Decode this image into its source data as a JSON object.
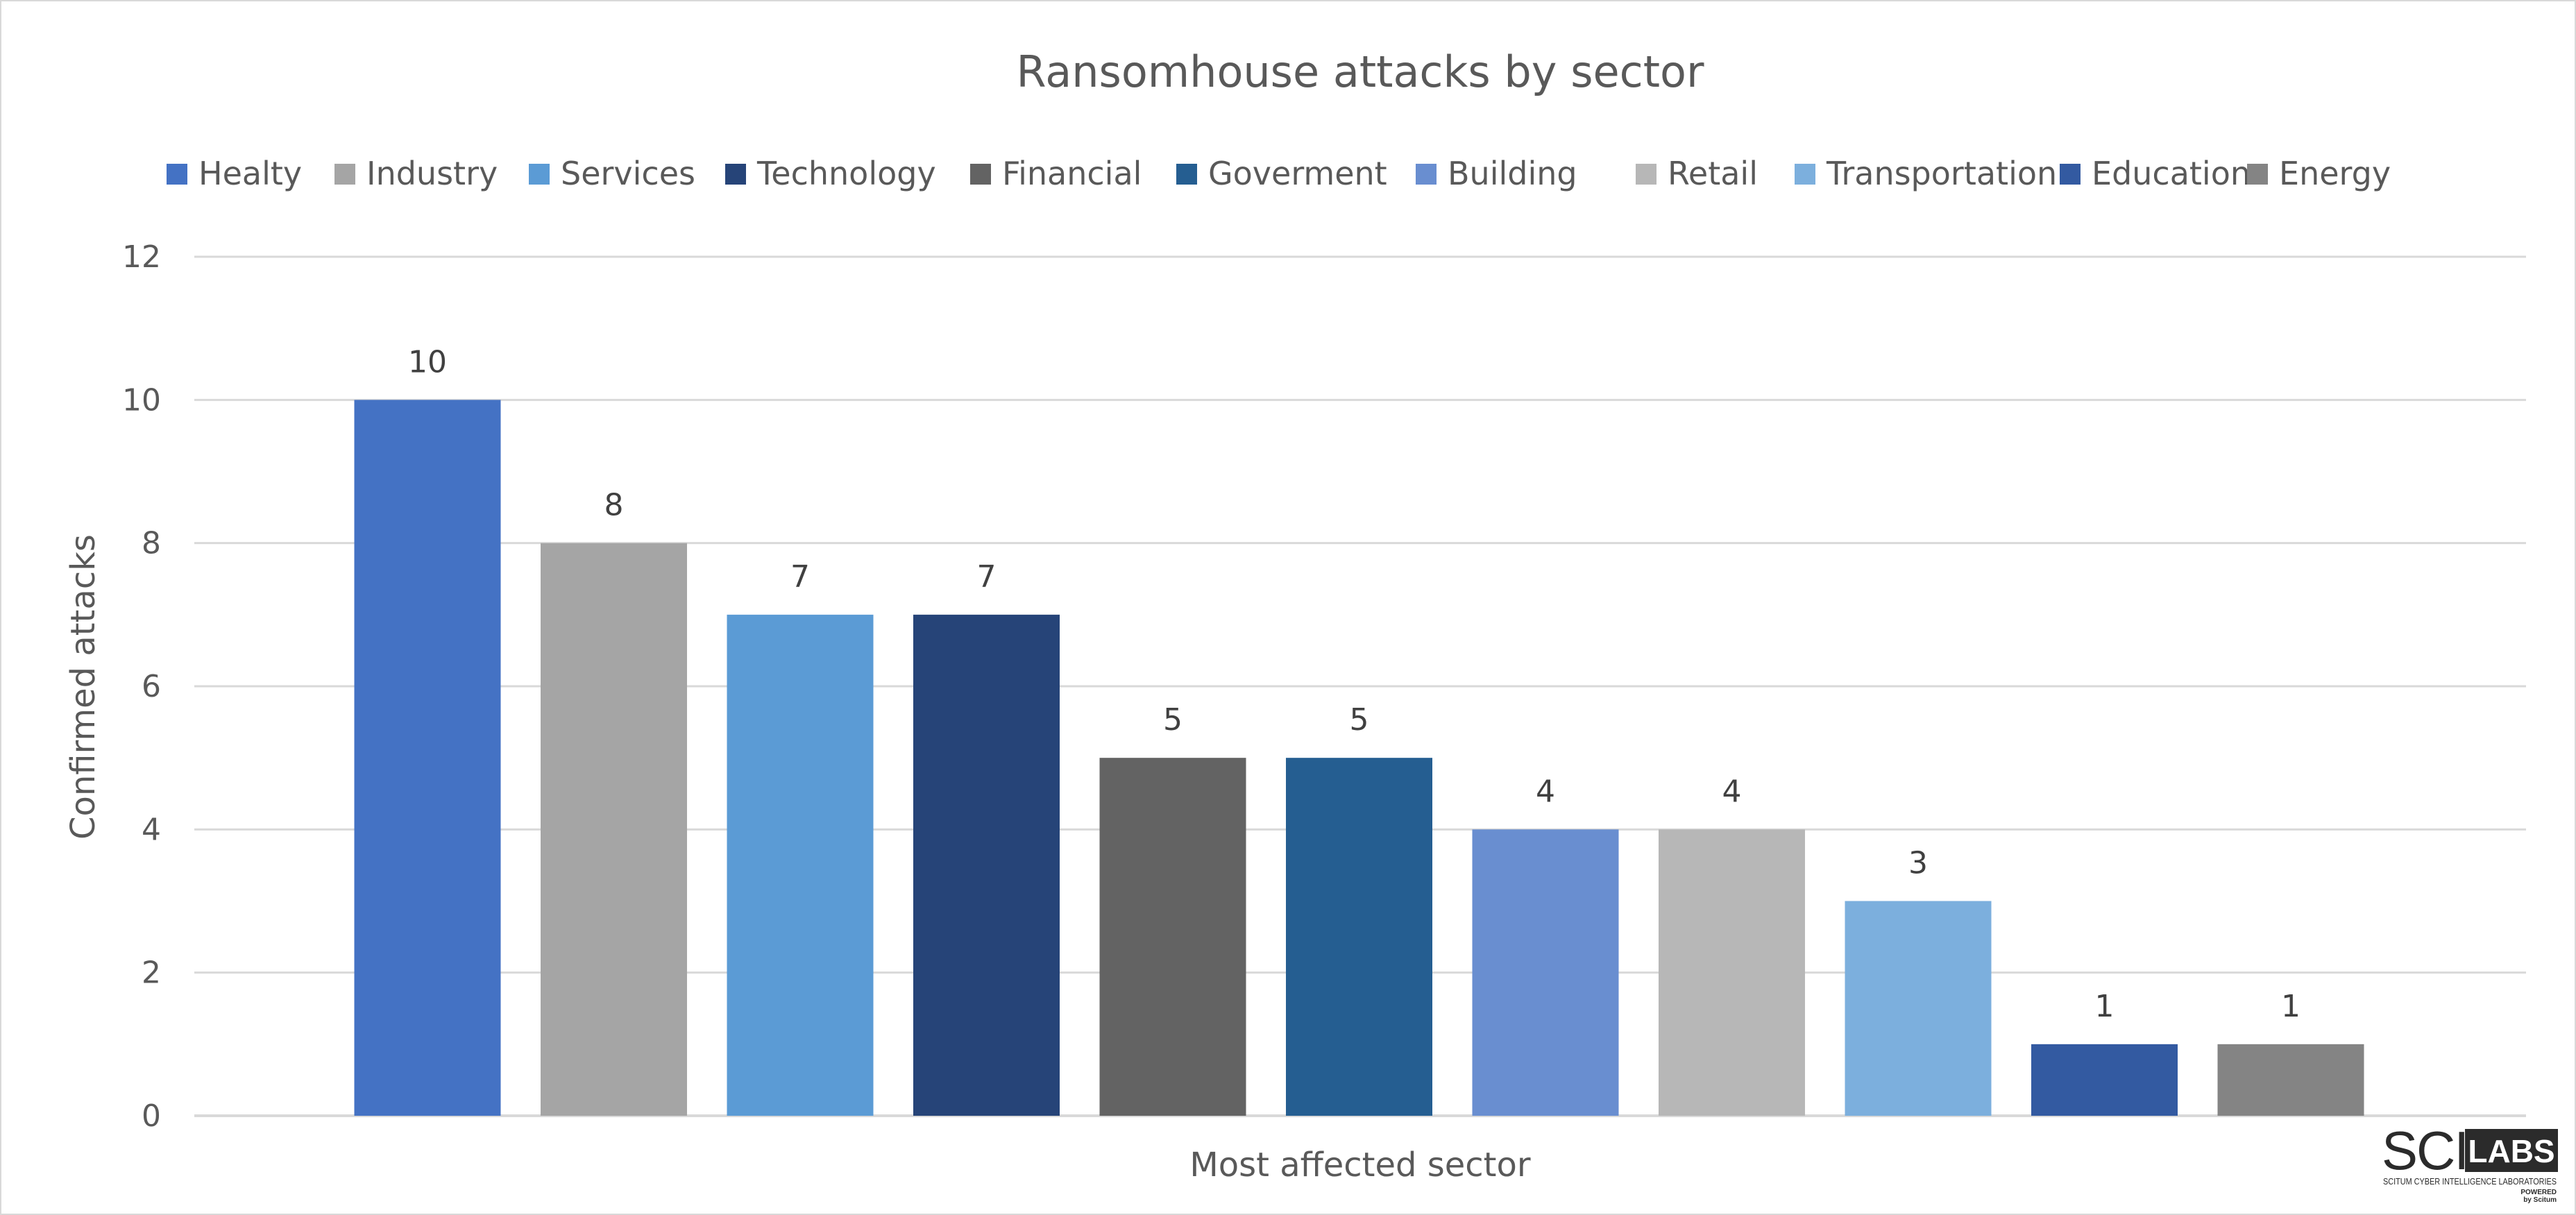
{
  "chart_data": {
    "type": "bar",
    "title": "Ransomhouse  attacks by sector",
    "xlabel": "Most affected sector",
    "ylabel": "Confirmed attacks",
    "ylim": [
      0,
      12
    ],
    "yticks": [
      0,
      2,
      4,
      6,
      8,
      10,
      12
    ],
    "grid": true,
    "legend_position": "top",
    "categories": [
      "Healty",
      "Industry",
      "Services",
      "Technology",
      "Financial",
      "Goverment",
      "Building",
      "Retail",
      "Transportation",
      "Education",
      "Energy"
    ],
    "values": [
      10,
      8,
      7,
      7,
      5,
      5,
      4,
      4,
      3,
      1,
      1
    ],
    "colors": [
      "#4472C4",
      "#A5A5A5",
      "#5B9BD5",
      "#264478",
      "#636363",
      "#255E91",
      "#698ED0",
      "#B7B7B7",
      "#7CAFDD",
      "#335AA1",
      "#848484"
    ]
  },
  "logo": {
    "text_main": "SCI",
    "text_box": "LABS",
    "subtitle": "SCITUM CYBER INTELLIGENCE LABORATORIES",
    "powered": "POWERED",
    "by": "by Scitum"
  }
}
